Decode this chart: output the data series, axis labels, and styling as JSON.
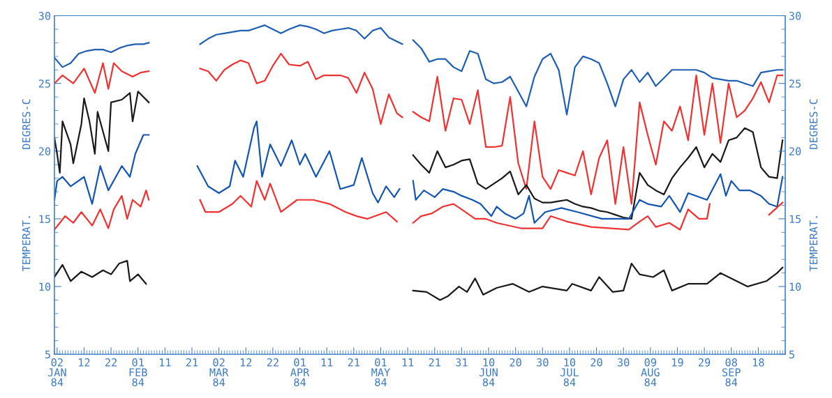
{
  "chart_data": {
    "type": "line",
    "ylabel": "TEMPERAT.          DEGRES-C",
    "y2label": "TEMPERAT.          DEGRES-C",
    "xlim": [
      "1984-01-01",
      "1984-09-28"
    ],
    "xticks": [
      {
        "value": "1984-01-02",
        "label": "02\nJAN\n84"
      },
      {
        "value": "1984-01-12",
        "label": "12"
      },
      {
        "value": "1984-01-22",
        "label": "22"
      },
      {
        "value": "1984-02-01",
        "label": "01\nFEB\n84"
      },
      {
        "value": "1984-02-11",
        "label": "11"
      },
      {
        "value": "1984-02-21",
        "label": "21"
      },
      {
        "value": "1984-03-02",
        "label": "02\nMAR\n84"
      },
      {
        "value": "1984-03-12",
        "label": "12"
      },
      {
        "value": "1984-03-22",
        "label": "22"
      },
      {
        "value": "1984-04-01",
        "label": "01\nAPR\n84"
      },
      {
        "value": "1984-04-11",
        "label": "11"
      },
      {
        "value": "1984-04-21",
        "label": "21"
      },
      {
        "value": "1984-05-01",
        "label": "01\nMAY\n84"
      },
      {
        "value": "1984-05-11",
        "label": "11"
      },
      {
        "value": "1984-05-21",
        "label": "21"
      },
      {
        "value": "1984-05-31",
        "label": "31"
      },
      {
        "value": "1984-06-10",
        "label": "10\nJUN\n84"
      },
      {
        "value": "1984-06-20",
        "label": "20"
      },
      {
        "value": "1984-06-30",
        "label": "30"
      },
      {
        "value": "1984-07-10",
        "label": "10\nJUL\n84"
      },
      {
        "value": "1984-07-20",
        "label": "20"
      },
      {
        "value": "1984-07-30",
        "label": "30"
      },
      {
        "value": "1984-08-09",
        "label": "09\nAUG\n84"
      },
      {
        "value": "1984-08-19",
        "label": "19"
      },
      {
        "value": "1984-08-29",
        "label": "29"
      },
      {
        "value": "1984-09-08",
        "label": "08\nSEP\n84"
      },
      {
        "value": "1984-09-18",
        "label": "18"
      }
    ],
    "ylim": [
      5,
      30
    ],
    "yticks": [
      5,
      10,
      15,
      20,
      25,
      30
    ],
    "y2lim": [
      5,
      30
    ],
    "y2ticks": [
      5,
      10,
      15,
      20,
      25,
      30
    ],
    "grid": false,
    "legend": false,
    "series": [
      {
        "color": "#1f5fb4",
        "x": [
          "1984-01-01",
          "1984-01-04",
          "1984-01-07",
          "1984-01-10",
          "1984-01-13",
          "1984-01-16",
          "1984-01-19",
          "1984-01-22",
          "1984-01-25",
          "1984-01-28",
          "1984-01-31",
          "1984-02-03",
          "1984-02-05",
          "1984-02-15",
          "1984-02-24",
          "1984-02-27",
          "1984-03-01",
          "1984-03-04",
          "1984-03-07",
          "1984-03-10",
          "1984-03-13",
          "1984-03-16",
          "1984-03-19",
          "1984-03-22",
          "1984-03-25",
          "1984-03-28",
          "1984-04-01",
          "1984-04-04",
          "1984-04-07",
          "1984-04-10",
          "1984-04-13",
          "1984-04-16",
          "1984-04-19",
          "1984-04-22",
          "1984-04-25",
          "1984-04-28",
          "1984-05-01",
          "1984-05-04",
          "1984-05-07",
          "1984-05-09",
          "1984-05-11",
          "1984-05-13",
          "1984-05-16",
          "1984-05-19",
          "1984-05-22",
          "1984-05-25",
          "1984-05-28",
          "1984-05-31",
          "1984-06-03",
          "1984-06-06",
          "1984-06-09",
          "1984-06-12",
          "1984-06-15",
          "1984-06-18",
          "1984-06-21",
          "1984-06-24",
          "1984-06-27",
          "1984-06-30",
          "1984-07-03",
          "1984-07-06",
          "1984-07-09",
          "1984-07-12",
          "1984-07-15",
          "1984-07-18",
          "1984-07-21",
          "1984-07-24",
          "1984-07-27",
          "1984-07-30",
          "1984-08-02",
          "1984-08-05",
          "1984-08-08",
          "1984-08-11",
          "1984-08-14",
          "1984-08-17",
          "1984-08-20",
          "1984-08-23",
          "1984-08-26",
          "1984-08-29",
          "1984-09-01",
          "1984-09-04",
          "1984-09-07",
          "1984-09-10",
          "1984-09-13",
          "1984-09-16",
          "1984-09-19",
          "1984-09-22",
          "1984-09-25",
          "1984-09-27"
        ],
        "values": [
          26.9,
          26.2,
          26.5,
          27.2,
          27.4,
          27.5,
          27.5,
          27.3,
          27.6,
          27.8,
          27.9,
          27.9,
          28.0,
          null,
          27.9,
          28.3,
          28.6,
          28.7,
          28.8,
          28.9,
          28.9,
          29.1,
          29.3,
          29.0,
          28.7,
          29.0,
          29.3,
          29.2,
          29.0,
          28.7,
          28.9,
          29.0,
          29.1,
          28.9,
          28.3,
          28.9,
          29.1,
          28.4,
          28.1,
          27.9,
          null,
          28.2,
          27.6,
          26.6,
          26.8,
          26.8,
          26.2,
          25.9,
          27.4,
          27.2,
          25.3,
          25.0,
          25.1,
          25.5,
          24.4,
          23.3,
          25.5,
          26.8,
          27.2,
          26.0,
          22.7,
          26.2,
          27.0,
          26.8,
          26.5,
          25.0,
          23.3,
          25.3,
          26.0,
          25.1,
          25.8,
          24.8,
          25.4,
          26.0,
          26.0,
          26.0,
          26.0,
          25.8,
          25.4,
          25.3,
          25.2,
          25.2,
          25.0,
          24.8,
          25.8,
          25.9,
          26.0,
          26.0
        ]
      },
      {
        "color": "#f03232",
        "x": [
          "1984-01-01",
          "1984-01-04",
          "1984-01-08",
          "1984-01-12",
          "1984-01-16",
          "1984-01-19",
          "1984-01-21",
          "1984-01-23",
          "1984-01-26",
          "1984-01-30",
          "1984-02-02",
          "1984-02-05",
          "1984-02-15",
          "1984-02-24",
          "1984-02-27",
          "1984-03-01",
          "1984-03-04",
          "1984-03-07",
          "1984-03-10",
          "1984-03-13",
          "1984-03-16",
          "1984-03-19",
          "1984-03-22",
          "1984-03-25",
          "1984-03-28",
          "1984-04-01",
          "1984-04-04",
          "1984-04-07",
          "1984-04-10",
          "1984-04-13",
          "1984-04-16",
          "1984-04-19",
          "1984-04-22",
          "1984-04-25",
          "1984-04-28",
          "1984-05-01",
          "1984-05-04",
          "1984-05-07",
          "1984-05-09",
          "1984-05-11",
          "1984-05-13",
          "1984-05-16",
          "1984-05-19",
          "1984-05-22",
          "1984-05-25",
          "1984-05-28",
          "1984-05-31",
          "1984-06-03",
          "1984-06-06",
          "1984-06-09",
          "1984-06-12",
          "1984-06-15",
          "1984-06-18",
          "1984-06-21",
          "1984-06-24",
          "1984-06-27",
          "1984-06-30",
          "1984-07-03",
          "1984-07-06",
          "1984-07-09",
          "1984-07-12",
          "1984-07-15",
          "1984-07-18",
          "1984-07-21",
          "1984-07-24",
          "1984-07-27",
          "1984-07-30",
          "1984-08-02",
          "1984-08-05",
          "1984-08-08",
          "1984-08-11",
          "1984-08-14",
          "1984-08-17",
          "1984-08-20",
          "1984-08-23",
          "1984-08-26",
          "1984-08-29",
          "1984-09-01",
          "1984-09-04",
          "1984-09-07",
          "1984-09-10",
          "1984-09-13",
          "1984-09-16",
          "1984-09-19",
          "1984-09-22",
          "1984-09-25",
          "1984-09-27"
        ],
        "values": [
          25.0,
          25.6,
          25.0,
          26.1,
          24.3,
          26.5,
          24.6,
          26.5,
          25.9,
          25.5,
          25.8,
          25.9,
          null,
          26.1,
          25.9,
          25.2,
          26.0,
          26.4,
          26.7,
          26.5,
          25.0,
          25.2,
          26.3,
          27.2,
          26.4,
          26.3,
          26.6,
          25.3,
          25.6,
          25.6,
          25.6,
          25.4,
          24.3,
          25.8,
          24.6,
          22.0,
          24.2,
          22.8,
          22.5,
          null,
          22.9,
          22.5,
          22.2,
          25.5,
          21.5,
          23.9,
          23.8,
          22.0,
          24.5,
          20.3,
          20.3,
          20.4,
          24.0,
          19.1,
          17.2,
          22.2,
          18.1,
          17.2,
          18.6,
          18.4,
          18.2,
          20.0,
          16.8,
          19.5,
          20.8,
          16.1,
          20.3,
          16.1,
          23.6,
          21.2,
          19.0,
          22.2,
          21.5,
          23.3,
          20.8,
          25.6,
          21.2,
          25.0,
          20.6,
          25.0,
          22.5,
          23.0,
          23.9,
          25.1,
          23.6,
          25.6,
          25.6
        ]
      },
      {
        "color": "#1a1a1a",
        "x": [
          "1984-01-01",
          "1984-01-02",
          "1984-01-03",
          "1984-01-04",
          "1984-01-07",
          "1984-01-08",
          "1984-01-11",
          "1984-01-12",
          "1984-01-14",
          "1984-01-16",
          "1984-01-17",
          "1984-01-21",
          "1984-01-22",
          "1984-01-26",
          "1984-01-29",
          "1984-01-30",
          "1984-02-01",
          "1984-02-05",
          "1984-03-15",
          "1984-05-13",
          "1984-05-16",
          "1984-05-19",
          "1984-05-22",
          "1984-05-25",
          "1984-05-28",
          "1984-05-31",
          "1984-06-03",
          "1984-06-06",
          "1984-06-09",
          "1984-06-12",
          "1984-06-15",
          "1984-06-18",
          "1984-06-21",
          "1984-06-24",
          "1984-06-27",
          "1984-06-30",
          "1984-07-03",
          "1984-07-06",
          "1984-07-09",
          "1984-07-12",
          "1984-07-15",
          "1984-07-18",
          "1984-07-21",
          "1984-07-24",
          "1984-07-27",
          "1984-07-30",
          "1984-08-02",
          "1984-08-05",
          "1984-08-08",
          "1984-08-11",
          "1984-08-14",
          "1984-08-17",
          "1984-08-20",
          "1984-08-23",
          "1984-08-26",
          "1984-08-29",
          "1984-09-01",
          "1984-09-04",
          "1984-09-07",
          "1984-09-10",
          "1984-09-13",
          "1984-09-16",
          "1984-09-19",
          "1984-09-22",
          "1984-09-25",
          "1984-09-27"
        ],
        "values": [
          21.0,
          19.8,
          18.4,
          22.2,
          20.5,
          19.1,
          22.0,
          23.9,
          22.2,
          19.8,
          22.9,
          20.0,
          23.6,
          23.8,
          24.3,
          22.2,
          24.4,
          23.6,
          null,
          19.7,
          19.0,
          18.4,
          20.0,
          18.8,
          19.0,
          19.3,
          19.4,
          17.6,
          17.2,
          17.6,
          18.0,
          18.5,
          16.8,
          17.5,
          16.5,
          16.2,
          16.2,
          16.3,
          16.4,
          16.1,
          15.9,
          15.8,
          15.6,
          15.5,
          15.3,
          15.1,
          15.0,
          18.4,
          17.5,
          17.1,
          16.8,
          18.0,
          18.8,
          19.5,
          20.3,
          18.8,
          19.8,
          19.2,
          20.8,
          21.0,
          21.7,
          21.4,
          18.8,
          18.1,
          18.0,
          20.8
        ]
      },
      {
        "color": "#1456b0",
        "x": [
          "1984-01-01",
          "1984-01-02",
          "1984-01-04",
          "1984-01-07",
          "1984-01-12",
          "1984-01-15",
          "1984-01-18",
          "1984-01-21",
          "1984-01-26",
          "1984-01-29",
          "1984-01-31",
          "1984-02-03",
          "1984-02-05",
          "1984-02-15",
          "1984-02-23",
          "1984-02-27",
          "1984-03-02",
          "1984-03-06",
          "1984-03-08",
          "1984-03-11",
          "1984-03-15",
          "1984-03-16",
          "1984-03-18",
          "1984-03-21",
          "1984-03-25",
          "1984-03-29",
          "1984-04-01",
          "1984-04-03",
          "1984-04-07",
          "1984-04-12",
          "1984-04-16",
          "1984-04-21",
          "1984-04-24",
          "1984-04-28",
          "1984-04-30",
          "1984-05-03",
          "1984-05-06",
          "1984-05-08",
          "1984-05-11",
          "1984-05-13",
          "1984-05-14",
          "1984-05-17",
          "1984-05-21",
          "1984-05-24",
          "1984-05-28",
          "1984-05-31",
          "1984-06-04",
          "1984-06-07",
          "1984-06-11",
          "1984-06-13",
          "1984-06-16",
          "1984-06-20",
          "1984-06-23",
          "1984-06-25",
          "1984-06-27",
          "1984-07-01",
          "1984-07-07",
          "1984-07-13",
          "1984-07-22",
          "1984-08-01",
          "1984-08-05",
          "1984-08-08",
          "1984-08-13",
          "1984-08-16",
          "1984-08-20",
          "1984-08-23",
          "1984-08-30",
          "1984-09-04",
          "1984-09-06",
          "1984-09-08",
          "1984-09-11",
          "1984-09-15",
          "1984-09-19",
          "1984-09-22",
          "1984-09-25",
          "1984-09-27"
        ],
        "values": [
          16.4,
          17.8,
          18.1,
          17.4,
          18.1,
          16.1,
          18.9,
          17.1,
          18.9,
          18.1,
          19.8,
          21.2,
          21.2,
          null,
          18.9,
          17.4,
          16.9,
          17.4,
          19.3,
          18.1,
          21.7,
          22.2,
          18.1,
          20.5,
          18.9,
          20.8,
          19.0,
          19.8,
          18.1,
          20.0,
          17.2,
          17.5,
          19.5,
          16.9,
          16.2,
          17.4,
          16.6,
          17.2,
          null,
          17.8,
          16.4,
          17.1,
          16.6,
          17.2,
          17.0,
          16.7,
          16.4,
          16.1,
          15.2,
          15.9,
          15.4,
          15.0,
          15.4,
          16.7,
          14.7,
          15.5,
          15.8,
          15.5,
          15.0,
          15.0,
          16.4,
          16.1,
          15.9,
          16.7,
          15.5,
          16.9,
          16.4,
          18.3,
          16.7,
          17.8,
          17.1,
          17.1,
          16.7,
          16.1,
          15.9,
          18.1
        ]
      },
      {
        "color": "#f03232",
        "x": [
          "1984-01-01",
          "1984-01-03",
          "1984-01-05",
          "1984-01-08",
          "1984-01-11",
          "1984-01-15",
          "1984-01-18",
          "1984-01-21",
          "1984-01-23",
          "1984-01-26",
          "1984-01-28",
          "1984-01-30",
          "1984-02-02",
          "1984-02-04",
          "1984-02-05",
          "1984-02-15",
          "1984-02-24",
          "1984-02-26",
          "1984-03-02",
          "1984-03-07",
          "1984-03-10",
          "1984-03-14",
          "1984-03-16",
          "1984-03-19",
          "1984-03-21",
          "1984-03-25",
          "1984-03-31",
          "1984-04-06",
          "1984-04-12",
          "1984-04-18",
          "1984-04-22",
          "1984-04-26",
          "1984-05-03",
          "1984-05-07",
          "1984-05-11",
          "1984-05-13",
          "1984-05-16",
          "1984-05-20",
          "1984-05-24",
          "1984-05-28",
          "1984-05-31",
          "1984-06-05",
          "1984-06-09",
          "1984-06-13",
          "1984-06-22",
          "1984-06-30",
          "1984-07-03",
          "1984-07-09",
          "1984-07-18",
          "1984-08-01",
          "1984-08-05",
          "1984-08-08",
          "1984-08-11",
          "1984-08-16",
          "1984-08-20",
          "1984-08-23",
          "1984-08-27",
          "1984-08-30",
          "1984-08-31",
          "1984-09-10",
          "1984-09-22",
          "1984-09-27"
        ],
        "values": [
          14.2,
          14.7,
          15.2,
          14.7,
          15.5,
          14.5,
          15.7,
          14.3,
          15.7,
          16.7,
          15.0,
          16.4,
          15.9,
          17.1,
          16.4,
          null,
          16.4,
          15.5,
          15.5,
          16.1,
          16.7,
          15.9,
          17.8,
          16.4,
          17.6,
          15.5,
          16.4,
          16.4,
          16.1,
          15.5,
          15.2,
          15.0,
          15.5,
          14.8,
          null,
          14.7,
          15.2,
          15.4,
          15.9,
          16.1,
          15.7,
          15.0,
          15.0,
          14.7,
          14.3,
          14.3,
          15.2,
          14.8,
          14.4,
          14.2,
          14.8,
          15.2,
          14.4,
          14.7,
          14.2,
          15.7,
          15.0,
          15.0,
          16.1,
          null,
          15.3,
          16.2
        ]
      },
      {
        "color": "#1a1a1a",
        "x": [
          "1984-01-01",
          "1984-01-04",
          "1984-01-07",
          "1984-01-11",
          "1984-01-15",
          "1984-01-19",
          "1984-01-22",
          "1984-01-25",
          "1984-01-28",
          "1984-01-29",
          "1984-02-01",
          "1984-02-04",
          "1984-03-15",
          "1984-05-13",
          "1984-05-18",
          "1984-05-23",
          "1984-05-26",
          "1984-05-30",
          "1984-06-02",
          "1984-06-05",
          "1984-06-08",
          "1984-06-13",
          "1984-06-19",
          "1984-06-25",
          "1984-06-30",
          "1984-07-09",
          "1984-07-11",
          "1984-07-18",
          "1984-07-21",
          "1984-07-26",
          "1984-07-30",
          "1984-08-02",
          "1984-08-05",
          "1984-08-10",
          "1984-08-14",
          "1984-08-17",
          "1984-08-23",
          "1984-08-30",
          "1984-09-04",
          "1984-09-08",
          "1984-09-14",
          "1984-09-21",
          "1984-09-25",
          "1984-09-27"
        ],
        "values": [
          10.7,
          11.6,
          10.4,
          11.1,
          10.7,
          11.2,
          10.9,
          11.7,
          11.9,
          10.4,
          10.9,
          10.2,
          null,
          9.7,
          9.6,
          9.0,
          9.3,
          10.0,
          9.6,
          10.6,
          9.4,
          9.9,
          10.2,
          9.6,
          10.0,
          9.7,
          10.2,
          9.7,
          10.7,
          9.6,
          9.7,
          11.7,
          10.9,
          10.7,
          11.2,
          9.7,
          10.2,
          10.2,
          11.0,
          10.6,
          10.0,
          10.4,
          11.0,
          11.4
        ]
      }
    ]
  }
}
